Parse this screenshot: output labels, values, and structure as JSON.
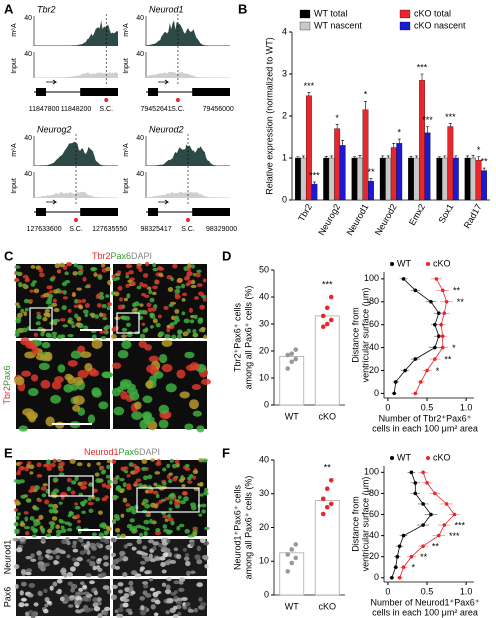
{
  "panels": [
    "A",
    "B",
    "C",
    "D",
    "E",
    "F"
  ],
  "genome_tracks": {
    "peak_label": "m⁶A",
    "input_label": "Input",
    "scale": "40",
    "tracks": [
      {
        "gene": "Tbr2",
        "coords": [
          "11847800",
          "11848200",
          "S.C."
        ]
      },
      {
        "gene": "Neurod1",
        "coords": [
          "79452641",
          "S.C.",
          "79456000"
        ]
      },
      {
        "gene": "Neurog2",
        "coords": [
          "127633600",
          "S.C.",
          "127635550"
        ]
      },
      {
        "gene": "Neurod2",
        "coords": [
          "98325417",
          "S.C.",
          "98329000"
        ]
      }
    ]
  },
  "images": {
    "C": {
      "stains": [
        "Tbr2",
        "Pax6",
        "DAPI"
      ],
      "side_label": [
        "Tbr2",
        "Pax6"
      ]
    },
    "E": {
      "stains": [
        "Neurod1",
        "Pax6",
        "DAPI"
      ],
      "strip_labels": [
        "Neurod1",
        "Pax6"
      ]
    }
  },
  "chart_data": [
    {
      "type": "bar",
      "ylabel": "Relative expression (normalized to WT)",
      "categories": [
        "Tbr2",
        "Neurog2",
        "Neurod1",
        "Neurod2",
        "Emx2",
        "Sox1",
        "Rad17"
      ],
      "series": [
        {
          "name": "WT total",
          "color": "#000000",
          "values": [
            1,
            1,
            1,
            1,
            1,
            1,
            1
          ],
          "errors": [
            0.03,
            0.04,
            0.03,
            0.05,
            0.04,
            0.03,
            0.05
          ]
        },
        {
          "name": "WT nascent",
          "color": "#c8c8c8",
          "values": [
            1,
            1,
            1,
            1,
            1,
            1,
            1
          ],
          "errors": [
            0.05,
            0.05,
            0.06,
            0.05,
            0.05,
            0.05,
            0.06
          ]
        },
        {
          "name": "cKO total",
          "color": "#e8262b",
          "values": [
            2.48,
            1.7,
            2.15,
            1.25,
            2.85,
            1.75,
            0.95
          ],
          "errors": [
            0.08,
            0.1,
            0.2,
            0.1,
            0.15,
            0.07,
            0.08
          ],
          "significance": [
            "***",
            "*",
            "*",
            null,
            "***",
            "***",
            "*"
          ]
        },
        {
          "name": "cKO nascent",
          "color": "#1a1ad4",
          "values": [
            0.38,
            1.3,
            0.45,
            1.35,
            1.6,
            1.0,
            0.7
          ],
          "errors": [
            0.05,
            0.12,
            0.06,
            0.1,
            0.15,
            0.05,
            0.06
          ],
          "significance": [
            "***",
            null,
            "**",
            "*",
            "***",
            null,
            "**"
          ]
        }
      ],
      "ylim": [
        0,
        4
      ],
      "yticks": [
        0,
        1,
        2,
        3,
        4
      ],
      "legend": "top"
    },
    {
      "type": "dotbar",
      "ylabel": [
        "Tbr2⁺Pax6⁺ cells",
        "among all Pax6⁺ cells (%)"
      ],
      "categories": [
        "WT",
        "cKO"
      ],
      "values": [
        18,
        33
      ],
      "colors": [
        "#999999",
        "#e8262b"
      ],
      "points": [
        [
          13.5,
          16,
          17,
          18.5,
          19,
          20.5
        ],
        [
          29,
          30,
          31.5,
          33,
          36,
          40
        ]
      ],
      "annotation": "***",
      "ylim": [
        0,
        50
      ],
      "yticks": [
        0,
        10,
        20,
        30,
        40,
        50
      ]
    },
    {
      "type": "profile",
      "ylabel": [
        "Distance from",
        "ventricular surface (μm)"
      ],
      "xlabel": [
        "Number of Tbr2⁺Pax6⁺",
        "cells in each 100 μm² area"
      ],
      "y": [
        0,
        10,
        20,
        30,
        40,
        50,
        60,
        70,
        80,
        90,
        100
      ],
      "series": [
        {
          "name": "WT",
          "color": "#000000",
          "values": [
            0.08,
            0.1,
            0.22,
            0.35,
            0.6,
            0.65,
            0.6,
            0.65,
            0.55,
            0.35,
            0.2
          ],
          "errors": [
            0.03,
            0.04,
            0.05,
            0.06,
            0.08,
            0.06,
            0.05,
            0.06,
            0.07,
            0.06,
            0.05
          ]
        },
        {
          "name": "cKO",
          "color": "#e8262b",
          "values": [
            0.35,
            0.42,
            0.5,
            0.6,
            0.7,
            0.7,
            0.68,
            0.72,
            0.75,
            0.7,
            0.62
          ],
          "errors": [
            0.05,
            0.05,
            0.06,
            0.07,
            0.07,
            0.06,
            0.06,
            0.07,
            0.08,
            0.08,
            0.07
          ]
        }
      ],
      "significance": [
        null,
        null,
        "*",
        "**",
        "*",
        null,
        null,
        null,
        "**",
        "**",
        null
      ],
      "xlim": [
        -0.05,
        1.1
      ],
      "xticks": [
        0,
        0.5,
        {
          "value": 1,
          "label": "1.0"
        }
      ],
      "ylim": [
        -4,
        106
      ],
      "yticks": [
        0,
        20,
        40,
        60,
        80,
        100
      ]
    },
    {
      "type": "dotbar",
      "ylabel": [
        "Neurod1⁺Pax6⁺ cells",
        "among all Pax6⁺ cells (%)"
      ],
      "categories": [
        "WT",
        "cKO"
      ],
      "values": [
        12.5,
        28
      ],
      "colors": [
        "#999999",
        "#e8262b"
      ],
      "points": [
        [
          7,
          9.5,
          11,
          12,
          13.5,
          15
        ],
        [
          24,
          26,
          27,
          28.5,
          31.5,
          34
        ]
      ],
      "annotation": "**",
      "ylim": [
        0,
        40
      ],
      "yticks": [
        0,
        10,
        20,
        30,
        40
      ]
    },
    {
      "type": "profile",
      "ylabel": [
        "Distance from",
        "ventricular surface (μm)"
      ],
      "xlabel": [
        "Number of Neurod1⁺Pax6⁺",
        "cells in each 100 μm² area"
      ],
      "y": [
        0,
        10,
        20,
        30,
        40,
        50,
        60,
        70,
        80,
        90,
        100
      ],
      "series": [
        {
          "name": "WT",
          "color": "#000000",
          "values": [
            0.05,
            0.1,
            0.12,
            0.15,
            0.2,
            0.45,
            0.55,
            0.45,
            0.35,
            0.35,
            0.3
          ],
          "errors": [
            0.03,
            0.03,
            0.04,
            0.05,
            0.05,
            0.08,
            0.08,
            0.07,
            0.06,
            0.06,
            0.05
          ]
        },
        {
          "name": "cKO",
          "color": "#e8262b",
          "values": [
            0.15,
            0.2,
            0.3,
            0.45,
            0.65,
            0.72,
            0.85,
            0.75,
            0.6,
            0.5,
            0.45
          ],
          "errors": [
            0.04,
            0.05,
            0.06,
            0.06,
            0.08,
            0.08,
            0.07,
            0.08,
            0.07,
            0.07,
            0.06
          ]
        }
      ],
      "significance": [
        null,
        "*",
        "**",
        "**",
        "***",
        "***",
        null,
        null,
        null,
        null,
        null
      ],
      "xlim": [
        -0.05,
        1.1
      ],
      "xticks": [
        0,
        0.5,
        {
          "value": 1,
          "label": "1.0"
        }
      ],
      "ylim": [
        -4,
        106
      ],
      "yticks": [
        0,
        20,
        40,
        60,
        80,
        100
      ]
    }
  ]
}
